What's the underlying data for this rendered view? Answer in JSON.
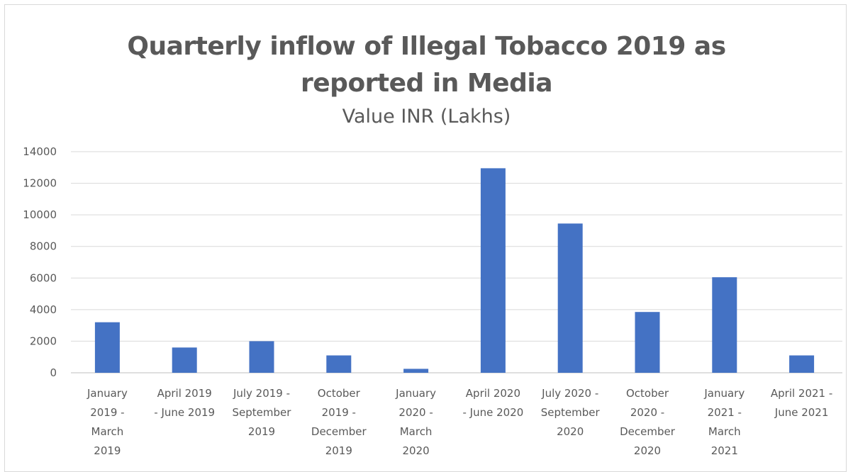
{
  "chart_data": {
    "type": "bar",
    "title_lines": [
      "Quarterly inflow of Illegal Tobacco 2019 as",
      "reported in Media"
    ],
    "subtitle": "Value INR (Lakhs)",
    "xlabel": "",
    "ylabel": "",
    "ylim": [
      0,
      14000
    ],
    "yticks": [
      0,
      2000,
      4000,
      6000,
      8000,
      10000,
      12000,
      14000
    ],
    "grid": true,
    "legend": "none",
    "bar_color": "#4472c4",
    "categories": [
      "January 2019 - March 2019",
      "April - June 2019",
      "July - September 2019",
      "October 2019 - December 2019",
      "January 2020 - March 2020",
      "April - June 2020",
      "July - September 2020",
      "October 2020 - December 2020",
      "January 2021 - March 2021",
      "April 2021 - June 2021"
    ],
    "category_label_lines": [
      [
        "January",
        "2019 -",
        "March",
        "2019"
      ],
      [
        "April   2019",
        "- June 2019"
      ],
      [
        "July   2019 -",
        "September",
        "2019"
      ],
      [
        "October",
        "2019 -",
        "December",
        "2019"
      ],
      [
        "January",
        "2020 -",
        "March",
        "2020"
      ],
      [
        "April   2020",
        "- June 2020"
      ],
      [
        "July   2020 -",
        "September",
        "2020"
      ],
      [
        "October",
        "2020 -",
        "December",
        "2020"
      ],
      [
        "January",
        "2021 -",
        "March",
        "2021"
      ],
      [
        "April 2021 -",
        "June 2021"
      ]
    ],
    "values": [
      3200,
      1600,
      2000,
      1100,
      250,
      12950,
      9450,
      3850,
      6050,
      1100
    ]
  }
}
